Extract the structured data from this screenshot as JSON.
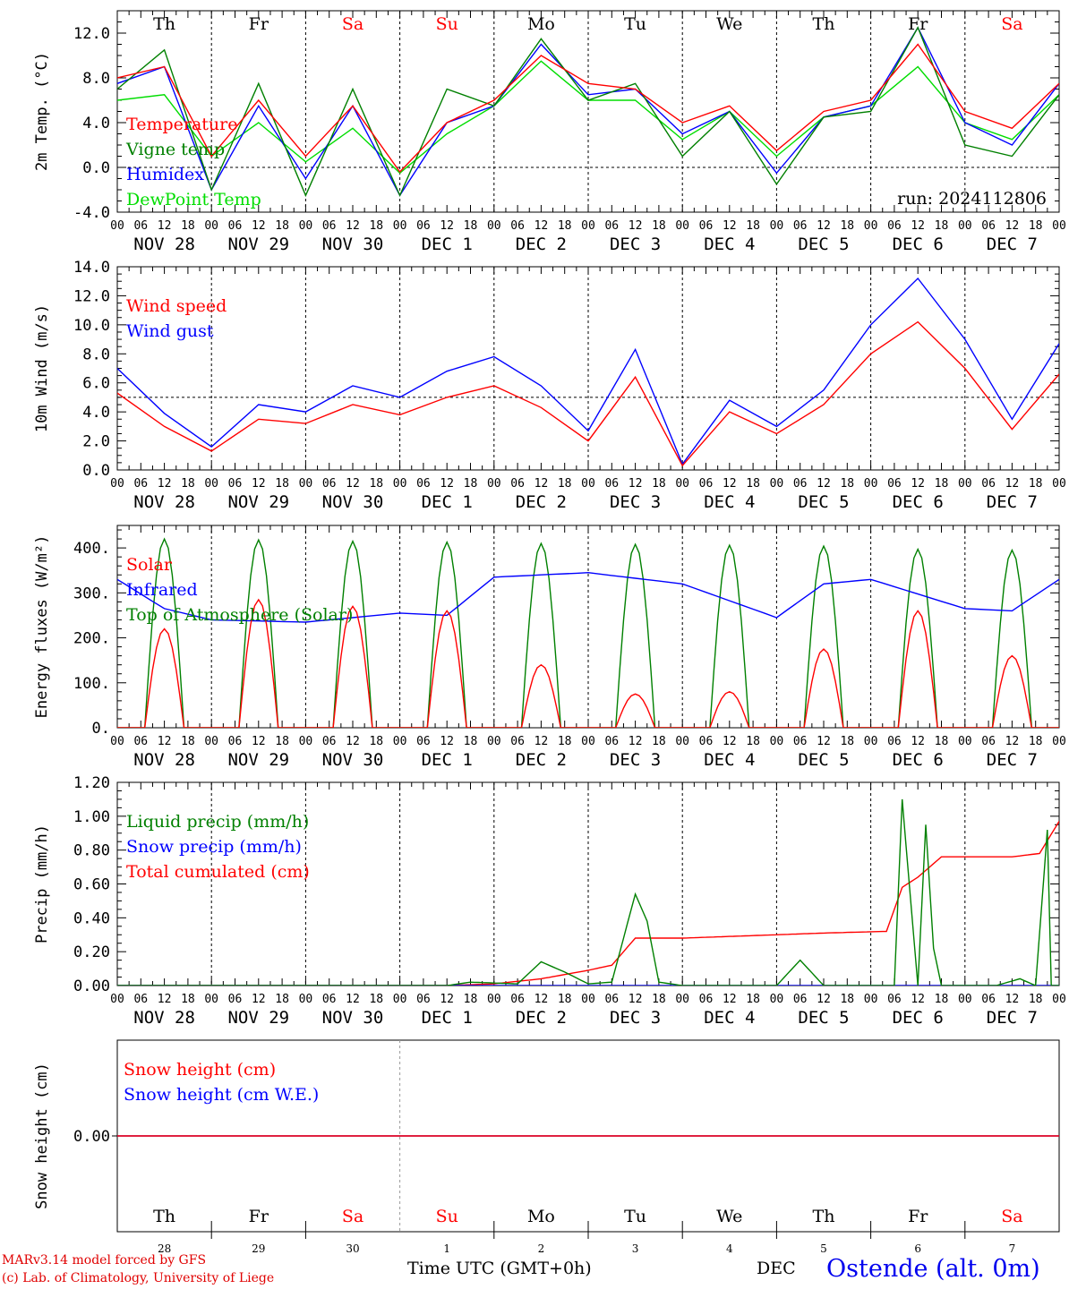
{
  "chart_data": [
    {
      "type": "line",
      "ylabel": "2m Temp. (°C)",
      "ylim": [
        -4,
        14
      ],
      "yticks": [
        "-4.0",
        "0.0",
        "4.0",
        "8.0",
        "12.0"
      ],
      "reference_line": 0,
      "annotation": "run: 2024112806",
      "x": [
        0,
        12,
        24,
        36,
        48,
        60,
        72,
        84,
        96,
        108,
        120,
        132,
        144,
        156,
        168,
        180,
        192,
        204,
        216,
        228,
        240
      ],
      "series": [
        {
          "name": "Temperature",
          "color": "#ff0000",
          "values": [
            8.0,
            9.0,
            1.0,
            6.0,
            1.0,
            5.5,
            -0.4,
            4.0,
            6.0,
            10.0,
            7.5,
            7.0,
            4.0,
            5.5,
            1.5,
            5.0,
            6.0,
            11.0,
            5.0,
            3.5,
            7.5
          ]
        },
        {
          "name": "Vigne temp",
          "color": "#008000",
          "values": [
            7.0,
            10.5,
            -2.0,
            7.5,
            -2.5,
            7.0,
            -2.5,
            7.0,
            5.5,
            11.5,
            6.0,
            7.5,
            1.0,
            5.0,
            -1.5,
            4.5,
            5.0,
            12.5,
            2.0,
            1.0,
            6.5
          ]
        },
        {
          "name": "Humidex",
          "color": "#0000ff",
          "values": [
            7.5,
            9.0,
            -2.0,
            5.5,
            -1.0,
            5.5,
            -2.5,
            4.0,
            5.5,
            11.0,
            6.5,
            7.0,
            3.0,
            5.0,
            -0.5,
            4.5,
            5.5,
            12.5,
            4.0,
            2.0,
            7.5
          ]
        },
        {
          "name": "DewPoint Temp",
          "color": "#00dd00",
          "values": [
            6.0,
            6.5,
            1.0,
            4.0,
            0.5,
            3.5,
            -0.5,
            3.0,
            5.5,
            9.5,
            6.0,
            6.0,
            2.5,
            5.0,
            1.0,
            4.5,
            5.5,
            9.0,
            4.0,
            2.5,
            6.5
          ]
        }
      ]
    },
    {
      "type": "line",
      "ylabel": "10m Wind (m/s)",
      "ylim": [
        0,
        14
      ],
      "yticks": [
        "0.0",
        "2.0",
        "4.0",
        "6.0",
        "8.0",
        "10.0",
        "12.0",
        "14.0"
      ],
      "reference_line": 5,
      "x": [
        0,
        12,
        24,
        36,
        48,
        60,
        72,
        84,
        96,
        108,
        120,
        132,
        144,
        156,
        168,
        180,
        192,
        204,
        216,
        228,
        240
      ],
      "series": [
        {
          "name": "Wind speed",
          "color": "#ff0000",
          "values": [
            5.3,
            3.0,
            1.3,
            3.5,
            3.2,
            4.5,
            3.8,
            5.0,
            5.8,
            4.3,
            2.0,
            6.4,
            0.3,
            4.0,
            2.5,
            4.5,
            8.0,
            10.2,
            7.0,
            2.8,
            6.6
          ]
        },
        {
          "name": "Wind gust",
          "color": "#0000ff",
          "values": [
            7.0,
            3.9,
            1.6,
            4.5,
            4.0,
            5.8,
            5.0,
            6.8,
            7.8,
            5.8,
            2.7,
            8.3,
            0.4,
            4.8,
            3.0,
            5.5,
            10.0,
            13.2,
            9.0,
            3.5,
            8.7
          ]
        }
      ]
    },
    {
      "type": "line",
      "ylabel": "Energy fluxes (W/m²)",
      "ylim": [
        0,
        450
      ],
      "yticks": [
        "0.",
        "100.",
        "200.",
        "300.",
        "400."
      ],
      "series": [
        {
          "name": "Solar",
          "color": "#ff0000",
          "days": [
            0,
            1,
            2,
            3,
            4,
            5,
            6,
            7,
            8,
            9
          ],
          "peaks": [
            220,
            285,
            270,
            260,
            140,
            75,
            80,
            175,
            260,
            160
          ]
        },
        {
          "name": "Infrared",
          "color": "#0000ff",
          "x": [
            0,
            12,
            24,
            48,
            72,
            84,
            96,
            120,
            144,
            168,
            180,
            192,
            216,
            228,
            240
          ],
          "values": [
            330,
            265,
            240,
            235,
            255,
            250,
            335,
            345,
            320,
            245,
            320,
            330,
            265,
            260,
            330
          ]
        },
        {
          "name": "Top of Atmosphere (Solar)",
          "color": "#008000",
          "days": [
            0,
            1,
            2,
            3,
            4,
            5,
            6,
            7,
            8,
            9
          ],
          "peaks": [
            420,
            418,
            415,
            413,
            410,
            408,
            406,
            404,
            397,
            395
          ]
        }
      ]
    },
    {
      "type": "line",
      "ylabel": "Precip (mm/h)",
      "ylim": [
        0,
        1.2
      ],
      "yticks": [
        "0.00",
        "0.20",
        "0.40",
        "0.60",
        "0.80",
        "1.00",
        "1.20"
      ],
      "series": [
        {
          "name": "Liquid precip (mm/h)",
          "color": "#008000",
          "x": [
            0,
            84,
            90,
            102,
            108,
            114,
            120,
            126,
            132,
            135,
            138,
            144,
            168,
            174,
            180,
            198,
            200,
            204,
            206,
            208,
            210,
            224,
            230,
            234,
            237,
            238,
            240
          ],
          "values": [
            0,
            0,
            0.02,
            0.01,
            0.14,
            0.08,
            0.01,
            0.02,
            0.54,
            0.38,
            0.02,
            0.0,
            0.0,
            0.15,
            0.0,
            0.0,
            1.1,
            0.0,
            0.95,
            0.22,
            0.0,
            0.0,
            0.04,
            0.0,
            0.92,
            0.0,
            0.0
          ]
        },
        {
          "name": "Snow precip (mm/h)",
          "color": "#0000ff",
          "x": [
            0,
            240
          ],
          "values": [
            0,
            0
          ]
        },
        {
          "name": "Total cumulated (cm)",
          "color": "#ff0000",
          "x": [
            0,
            84,
            96,
            108,
            120,
            126,
            132,
            144,
            168,
            180,
            196,
            200,
            204,
            210,
            228,
            235,
            240
          ],
          "values": [
            0,
            0.0,
            0.01,
            0.04,
            0.09,
            0.12,
            0.28,
            0.28,
            0.3,
            0.31,
            0.32,
            0.58,
            0.64,
            0.76,
            0.76,
            0.78,
            0.97
          ]
        }
      ]
    },
    {
      "type": "line",
      "ylabel": "Snow height (cm)",
      "yticks": [
        "0.00"
      ],
      "series": [
        {
          "name": "Snow height (cm)",
          "color": "#ff0000",
          "x": [
            0,
            240
          ],
          "values": [
            0,
            0
          ]
        },
        {
          "name": "Snow height (cm W.E.)",
          "color": "#0000ff",
          "x": [
            0,
            240
          ],
          "values": [
            0,
            0
          ]
        }
      ]
    }
  ],
  "axis": {
    "hour_labels": [
      "00",
      "06",
      "12",
      "18"
    ],
    "date_labels": [
      "NOV 28",
      "NOV 29",
      "NOV 30",
      "DEC  1",
      "DEC  2",
      "DEC  3",
      "DEC  4",
      "DEC  5",
      "DEC  6",
      "DEC  7"
    ],
    "weekdays": [
      "Th",
      "Fr",
      "Sa",
      "Su",
      "Mo",
      "Tu",
      "We",
      "Th",
      "Fr",
      "Sa"
    ],
    "weekend_flags": [
      false,
      false,
      true,
      true,
      false,
      false,
      false,
      false,
      false,
      true
    ],
    "day_numbers": [
      "28",
      "29",
      "30",
      "1",
      "2",
      "3",
      "4",
      "5",
      "6",
      "7"
    ]
  },
  "colors": {
    "weekday": "#000000",
    "weekend": "#ff0000"
  },
  "footer": {
    "credit_line1": "MARv3.14 model forced by GFS",
    "credit_line2": "(c) Lab. of Climatology, University of Liege",
    "xaxis_label": "Time UTC (GMT+0h)",
    "month_label": "DEC",
    "station": "Ostende (alt. 0m)"
  }
}
